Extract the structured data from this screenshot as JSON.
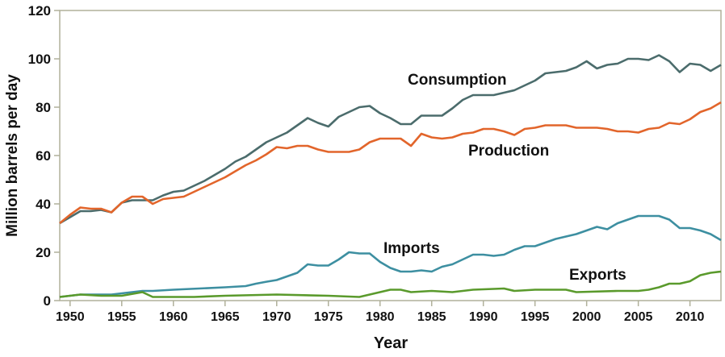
{
  "chart_data": {
    "type": "line",
    "title": "",
    "xlabel": "Year",
    "ylabel": "Million barrels per day",
    "xlim": [
      1949,
      2013
    ],
    "ylim": [
      0,
      120
    ],
    "xticks": [
      1950,
      1955,
      1960,
      1965,
      1970,
      1975,
      1980,
      1985,
      1990,
      1995,
      2000,
      2005,
      2010
    ],
    "yticks": [
      0,
      20,
      40,
      60,
      80,
      100,
      120
    ],
    "grid": false,
    "legend": "inline labels",
    "series": [
      {
        "name": "Consumption",
        "color": "#4b6c6c",
        "x": [
          1949,
          1950,
          1951,
          1952,
          1953,
          1954,
          1955,
          1956,
          1957,
          1958,
          1959,
          1960,
          1961,
          1962,
          1963,
          1964,
          1965,
          1966,
          1967,
          1968,
          1969,
          1970,
          1971,
          1972,
          1973,
          1974,
          1975,
          1976,
          1977,
          1978,
          1979,
          1980,
          1981,
          1982,
          1983,
          1984,
          1985,
          1986,
          1987,
          1988,
          1989,
          1990,
          1991,
          1992,
          1993,
          1994,
          1995,
          1996,
          1997,
          1998,
          1999,
          2000,
          2001,
          2002,
          2003,
          2004,
          2005,
          2006,
          2007,
          2008,
          2009,
          2010,
          2011,
          2012,
          2013
        ],
        "y": [
          32,
          34.5,
          37,
          37,
          37.5,
          36.5,
          40.5,
          41.5,
          41.5,
          41.5,
          43.5,
          45,
          45.5,
          47.5,
          49.5,
          52,
          54.5,
          57.5,
          59.5,
          62.5,
          65.5,
          67.5,
          69.5,
          72.5,
          75.5,
          73.5,
          72,
          76,
          78,
          80,
          80.5,
          77.5,
          75.5,
          73,
          73,
          76.5,
          76.5,
          76.5,
          79.5,
          83,
          85,
          85,
          85,
          86,
          87,
          89,
          91,
          94,
          94.5,
          95,
          96.5,
          99,
          96,
          97.5,
          98,
          100,
          100,
          99.5,
          101.5,
          99,
          94.5,
          98,
          97.5,
          95,
          97.5
        ]
      },
      {
        "name": "Production",
        "color": "#e2652b",
        "x": [
          1949,
          1950,
          1951,
          1952,
          1953,
          1954,
          1955,
          1956,
          1957,
          1958,
          1959,
          1960,
          1961,
          1962,
          1963,
          1964,
          1965,
          1966,
          1967,
          1968,
          1969,
          1970,
          1971,
          1972,
          1973,
          1974,
          1975,
          1976,
          1977,
          1978,
          1979,
          1980,
          1981,
          1982,
          1983,
          1984,
          1985,
          1986,
          1987,
          1988,
          1989,
          1990,
          1991,
          1992,
          1993,
          1994,
          1995,
          1996,
          1997,
          1998,
          1999,
          2000,
          2001,
          2002,
          2003,
          2004,
          2005,
          2006,
          2007,
          2008,
          2009,
          2010,
          2011,
          2012,
          2013
        ],
        "y": [
          32,
          35.5,
          38.5,
          38,
          38,
          36.5,
          40.5,
          43,
          43,
          40,
          42,
          42.5,
          43,
          45,
          47,
          49,
          51,
          53.5,
          56,
          58,
          60.5,
          63.5,
          63,
          64,
          64,
          62.5,
          61.5,
          61.5,
          61.5,
          62.5,
          65.5,
          67,
          67,
          67,
          64,
          69,
          67.5,
          67,
          67.5,
          69,
          69.5,
          71,
          71,
          70,
          68.5,
          71,
          71.5,
          72.5,
          72.5,
          72.5,
          71.5,
          71.5,
          71.5,
          71,
          70,
          70,
          69.5,
          71,
          71.5,
          73.5,
          73,
          75,
          78,
          79.5,
          82
        ]
      },
      {
        "name": "Imports",
        "color": "#3d8fa1",
        "x": [
          1949,
          1950,
          1951,
          1952,
          1953,
          1954,
          1955,
          1956,
          1957,
          1958,
          1960,
          1965,
          1967,
          1968,
          1969,
          1970,
          1971,
          1972,
          1973,
          1974,
          1975,
          1976,
          1977,
          1978,
          1979,
          1980,
          1981,
          1982,
          1983,
          1984,
          1985,
          1986,
          1987,
          1988,
          1989,
          1990,
          1991,
          1992,
          1993,
          1994,
          1995,
          1996,
          1997,
          1998,
          1999,
          2000,
          2001,
          2002,
          2003,
          2004,
          2005,
          2006,
          2007,
          2008,
          2009,
          2010,
          2011,
          2012,
          2013
        ],
        "y": [
          1.5,
          2,
          2.5,
          2.5,
          2.5,
          2.5,
          3,
          3.5,
          4,
          4,
          4.5,
          5.5,
          6,
          7,
          7.8,
          8.5,
          10,
          11.5,
          15,
          14.5,
          14.5,
          17,
          20,
          19.5,
          19.5,
          16,
          13.5,
          12,
          12,
          12.5,
          12,
          14,
          15,
          17,
          19,
          19,
          18.5,
          19,
          21,
          22.5,
          22.5,
          24,
          25.5,
          26.5,
          27.5,
          29,
          30.5,
          29.5,
          32,
          33.5,
          35,
          35,
          35,
          33.5,
          30,
          30,
          29,
          27.5,
          25
        ]
      },
      {
        "name": "Exports",
        "color": "#5a9a2c",
        "x": [
          1949,
          1951,
          1953,
          1955,
          1957,
          1958,
          1960,
          1962,
          1965,
          1970,
          1975,
          1978,
          1980,
          1981,
          1982,
          1983,
          1985,
          1987,
          1989,
          1992,
          1993,
          1995,
          1998,
          1999,
          2003,
          2005,
          2006,
          2007,
          2008,
          2009,
          2010,
          2011,
          2012,
          2013
        ],
        "y": [
          1.5,
          2.5,
          2,
          2,
          3.5,
          1.5,
          1.5,
          1.5,
          2,
          2.5,
          2,
          1.5,
          3.5,
          4.5,
          4.5,
          3.5,
          4,
          3.5,
          4.5,
          5,
          4,
          4.5,
          4.5,
          3.5,
          4,
          4,
          4.5,
          5.5,
          7,
          7,
          8,
          10.5,
          11.5,
          12
        ]
      }
    ]
  }
}
